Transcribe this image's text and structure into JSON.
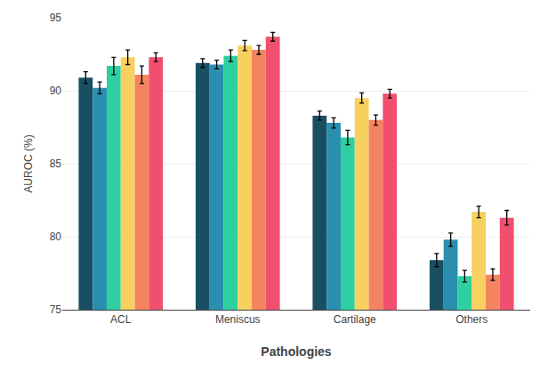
{
  "chart_data": {
    "type": "bar",
    "xlabel": "Pathologies",
    "ylabel": "AUROC (%)",
    "categories": [
      "ACL",
      "Meniscus",
      "Cartilage",
      "Others"
    ],
    "series": [
      {
        "color": "#1a4f63",
        "values": [
          90.9,
          91.9,
          88.3,
          78.4
        ],
        "errors": [
          0.4,
          0.3,
          0.3,
          0.45
        ]
      },
      {
        "color": "#2a8fae",
        "values": [
          90.2,
          91.8,
          87.8,
          79.8
        ],
        "errors": [
          0.4,
          0.3,
          0.35,
          0.45
        ]
      },
      {
        "color": "#2ecfa0",
        "values": [
          91.7,
          92.4,
          86.8,
          77.3
        ],
        "errors": [
          0.6,
          0.4,
          0.5,
          0.4
        ]
      },
      {
        "color": "#f7d060",
        "values": [
          92.3,
          93.1,
          89.5,
          81.7
        ],
        "errors": [
          0.5,
          0.35,
          0.35,
          0.4
        ]
      },
      {
        "color": "#f4845f",
        "values": [
          91.1,
          92.8,
          88.0,
          77.4
        ],
        "errors": [
          0.6,
          0.3,
          0.35,
          0.4
        ]
      },
      {
        "color": "#f0506e",
        "values": [
          92.3,
          93.7,
          89.8,
          81.3
        ],
        "errors": [
          0.3,
          0.3,
          0.3,
          0.5
        ]
      }
    ],
    "ylim": [
      75,
      95
    ],
    "yticks": [
      75,
      80,
      85,
      90,
      95
    ],
    "grid": true
  }
}
